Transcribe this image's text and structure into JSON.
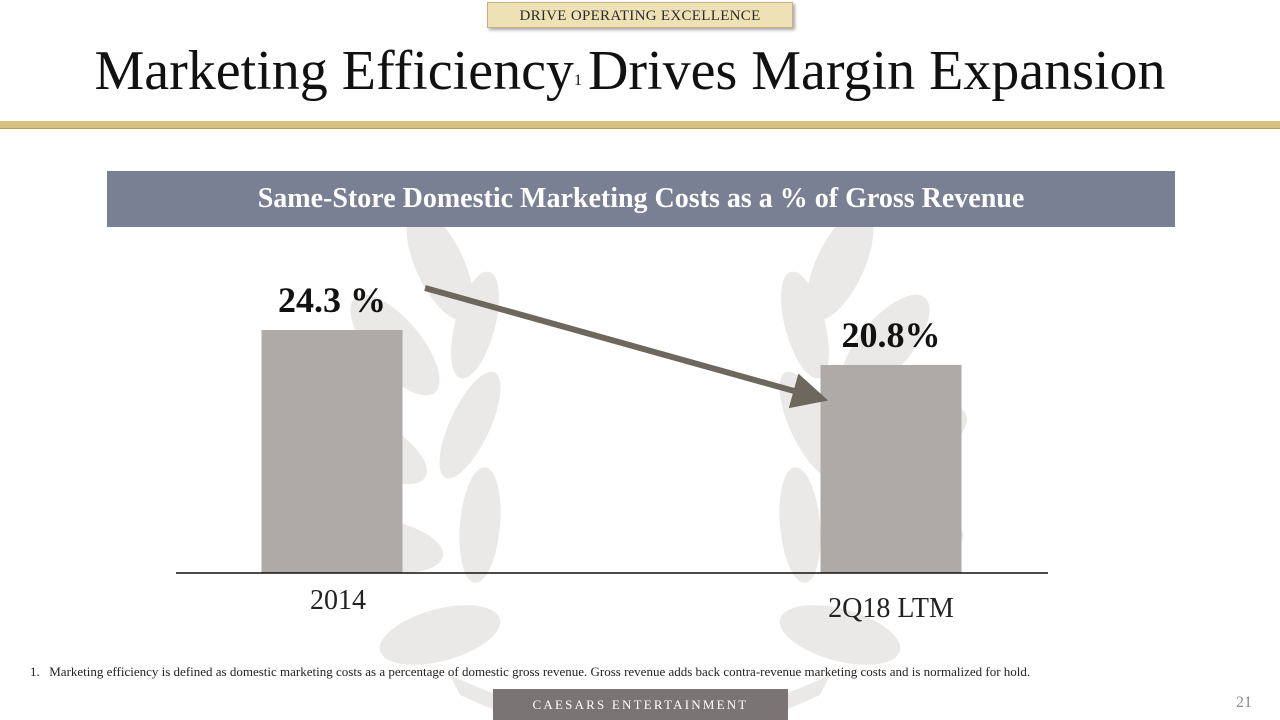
{
  "header": {
    "badge_label": "DRIVE OPERATING EXCELLENCE",
    "title_main": "Marketing Efficiency",
    "title_superscript": "1",
    "title_rest": "Drives Margin Expansion"
  },
  "chart_data": {
    "type": "bar",
    "title": "Same-Store Domestic Marketing Costs as a % of Gross Revenue",
    "categories": [
      "2014",
      "2Q18 LTM"
    ],
    "values": [
      24.3,
      20.8
    ],
    "data_labels": [
      "24.3 %",
      "20.8%"
    ],
    "unit": "%",
    "xlabel": "",
    "ylabel": "",
    "trend_arrow": "decrease from 2014 to 2Q18 LTM"
  },
  "footnote": {
    "number": "1.",
    "text": "Marketing efficiency is defined as domestic marketing costs as a percentage of domestic gross revenue. Gross revenue adds back contra-revenue marketing costs and is normalized for hold."
  },
  "footer": {
    "brand": "CAESARS ENTERTAINMENT",
    "page_number": "21"
  },
  "colors": {
    "gold": "#d6c181",
    "header_bar": "#7a8094",
    "bar": "#aeaaa8",
    "arrow": "#6e675d",
    "brand_bar": "#7a7474"
  }
}
